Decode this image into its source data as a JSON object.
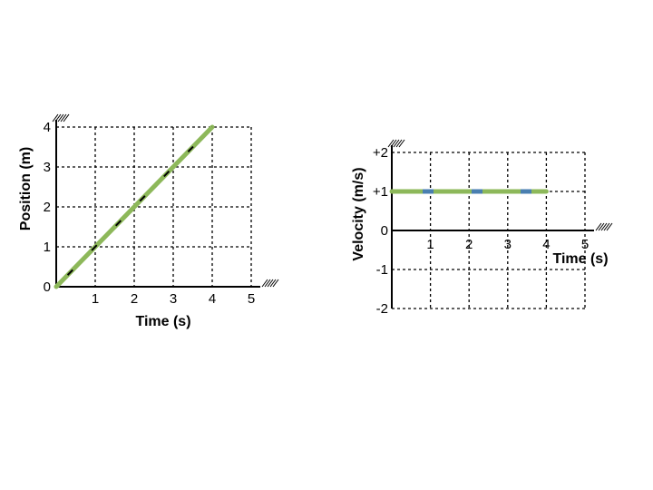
{
  "chart_data": [
    {
      "type": "line",
      "xlabel": "Time (s)",
      "ylabel": "Position (m)",
      "xlim": [
        0,
        5
      ],
      "ylim": [
        0,
        4
      ],
      "x_ticks": [
        "1",
        "2",
        "3",
        "4",
        "5"
      ],
      "y_ticks": [
        "0",
        "1",
        "2",
        "3",
        "4"
      ],
      "grid": true,
      "series": [
        {
          "x": [
            0,
            4
          ],
          "y": [
            0,
            4
          ],
          "color": "#8db85a",
          "dash_color": "#000000"
        }
      ]
    },
    {
      "type": "line",
      "xlabel": "Time (s)",
      "ylabel": "Velocity (m/s)",
      "xlim": [
        0,
        5
      ],
      "ylim": [
        -2,
        2
      ],
      "x_ticks": [
        "1",
        "2",
        "3",
        "4",
        "5"
      ],
      "y_ticks": [
        "+2",
        "+1",
        "0",
        "-1",
        "-2"
      ],
      "grid": true,
      "series": [
        {
          "x": [
            0,
            4
          ],
          "y": [
            1,
            1
          ],
          "color": "#8db85a",
          "dash_color": "#4a7fb0"
        }
      ]
    }
  ]
}
